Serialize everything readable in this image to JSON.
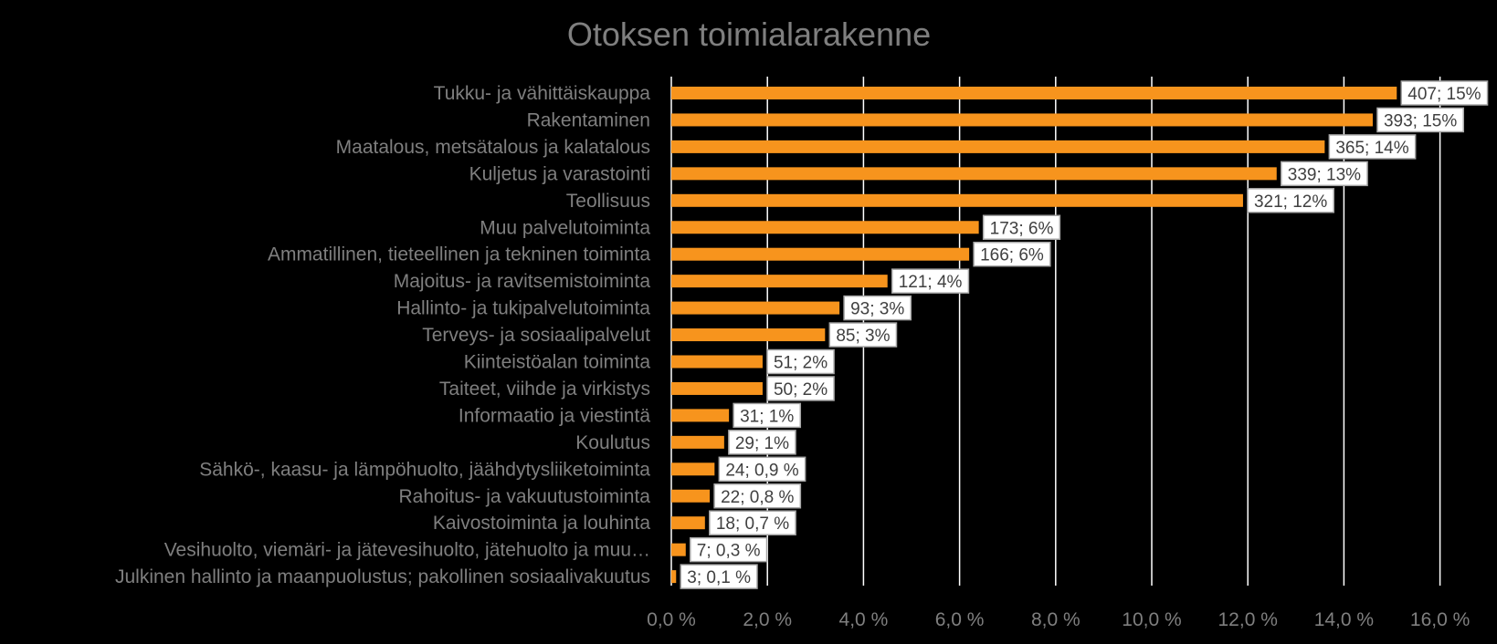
{
  "chart_data": {
    "type": "bar",
    "orientation": "horizontal",
    "title": "Otoksen toimialarakenne",
    "xlim": [
      0,
      16
    ],
    "x_ticks": [
      "0,0 %",
      "2,0 %",
      "4,0 %",
      "6,0 %",
      "8,0 %",
      "10,0 %",
      "12,0 %",
      "14,0 %",
      "16,0 %"
    ],
    "grid": true,
    "bar_color": "#f7941d",
    "categories": [
      "Tukku- ja vähittäiskauppa",
      "Rakentaminen",
      "Maatalous, metsätalous ja kalatalous",
      "Kuljetus ja varastointi",
      "Teollisuus",
      "Muu palvelutoiminta",
      "Ammatillinen, tieteellinen ja tekninen toiminta",
      "Majoitus- ja ravitsemistoiminta",
      "Hallinto- ja tukipalvelutoiminta",
      "Terveys- ja sosiaalipalvelut",
      "Kiinteistöalan toiminta",
      "Taiteet, viihde ja virkistys",
      "Informaatio ja viestintä",
      "Koulutus",
      "Sähkö-, kaasu- ja lämpöhuolto, jäähdytysliiketoiminta",
      "Rahoitus- ja vakuutustoiminta",
      "Kaivostoiminta ja louhinta",
      "Vesihuolto, viemäri- ja jätevesihuolto, jätehuolto ja muu…",
      "Julkinen hallinto ja maanpuolustus; pakollinen sosiaalivakuutus"
    ],
    "values": [
      15.1,
      14.6,
      13.6,
      12.6,
      11.9,
      6.4,
      6.2,
      4.5,
      3.5,
      3.2,
      1.9,
      1.9,
      1.2,
      1.1,
      0.9,
      0.8,
      0.7,
      0.3,
      0.1
    ],
    "data_labels": [
      "407; 15%",
      "393; 15%",
      "365; 14%",
      "339; 13%",
      "321; 12%",
      "173; 6%",
      "166; 6%",
      "121; 4%",
      "93; 3%",
      "85; 3%",
      "51; 2%",
      "50; 2%",
      "31; 1%",
      "29; 1%",
      "24; 0,9 %",
      "22; 0,8 %",
      "18; 0,7 %",
      "7; 0,3 %",
      "3; 0,1 %"
    ]
  }
}
